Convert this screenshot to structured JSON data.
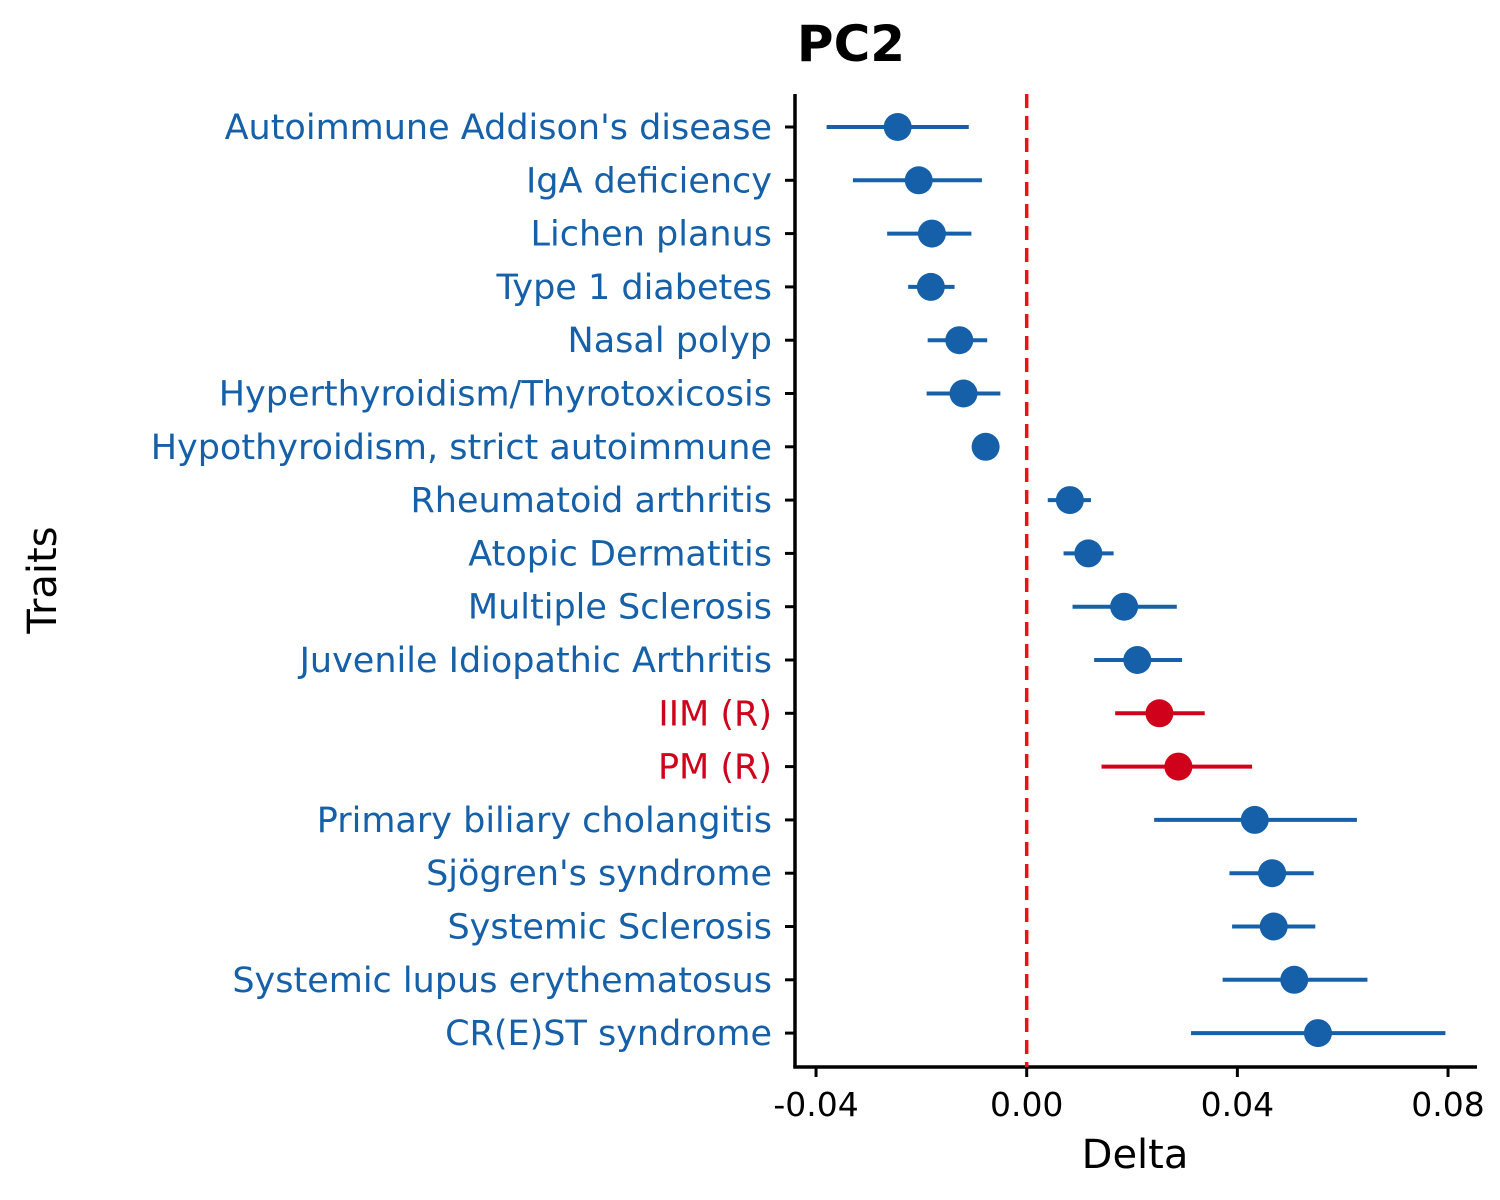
{
  "chart_data": {
    "type": "scatter",
    "subtype": "forest-plot",
    "title": "PC2",
    "xlabel": "Delta",
    "ylabel": "Traits",
    "xlim": [
      -0.044,
      0.086
    ],
    "xticks": [
      -0.04,
      0.0,
      0.04,
      0.08
    ],
    "xtick_labels": [
      "-0.04",
      "0.00",
      "0.04",
      "0.08"
    ],
    "reference_line": {
      "x": 0.0,
      "style": "dashed",
      "color": "#e8141c"
    },
    "grid": false,
    "legend": "none",
    "colors": {
      "default": "#1560a8",
      "highlight": "#d0021b"
    },
    "traits": [
      {
        "name": "Autoimmune Addison's disease",
        "delta": -0.0245,
        "low": -0.038,
        "high": -0.011,
        "highlight": false
      },
      {
        "name": "IgA deficiency",
        "delta": -0.0205,
        "low": -0.033,
        "high": -0.0085,
        "highlight": false
      },
      {
        "name": "Lichen planus",
        "delta": -0.018,
        "low": -0.0265,
        "high": -0.0105,
        "highlight": false
      },
      {
        "name": "Type 1 diabetes",
        "delta": -0.0182,
        "low": -0.0225,
        "high": -0.0137,
        "highlight": false
      },
      {
        "name": "Nasal polyp",
        "delta": -0.0128,
        "low": -0.0188,
        "high": -0.0075,
        "highlight": false
      },
      {
        "name": "Hyperthyroidism/Thyrotoxicosis",
        "delta": -0.012,
        "low": -0.019,
        "high": -0.005,
        "highlight": false
      },
      {
        "name": "Hypothyroidism, strict autoimmune",
        "delta": -0.0078,
        "low": -0.0085,
        "high": -0.007,
        "highlight": false
      },
      {
        "name": "Rheumatoid arthritis",
        "delta": 0.0082,
        "low": 0.004,
        "high": 0.0122,
        "highlight": false
      },
      {
        "name": "Atopic Dermatitis",
        "delta": 0.0117,
        "low": 0.007,
        "high": 0.0165,
        "highlight": false
      },
      {
        "name": "Multiple Sclerosis",
        "delta": 0.0185,
        "low": 0.0087,
        "high": 0.0285,
        "highlight": false
      },
      {
        "name": "Juvenile Idiopathic Arthritis",
        "delta": 0.021,
        "low": 0.0128,
        "high": 0.0295,
        "highlight": false
      },
      {
        "name": "IIM (R)",
        "delta": 0.0252,
        "low": 0.0168,
        "high": 0.0338,
        "highlight": true
      },
      {
        "name": "PM (R)",
        "delta": 0.0288,
        "low": 0.0142,
        "high": 0.0428,
        "highlight": true
      },
      {
        "name": "Primary biliary cholangitis",
        "delta": 0.0433,
        "low": 0.0242,
        "high": 0.0627,
        "highlight": false
      },
      {
        "name": "Sjögren's syndrome",
        "delta": 0.0466,
        "low": 0.0385,
        "high": 0.0545,
        "highlight": false
      },
      {
        "name": "Systemic Sclerosis",
        "delta": 0.0469,
        "low": 0.039,
        "high": 0.0548,
        "highlight": false
      },
      {
        "name": "Systemic lupus erythematosus",
        "delta": 0.0508,
        "low": 0.0372,
        "high": 0.0647,
        "highlight": false
      },
      {
        "name": "CR(E)ST syndrome",
        "delta": 0.0553,
        "low": 0.0312,
        "high": 0.0795,
        "highlight": false
      }
    ]
  }
}
